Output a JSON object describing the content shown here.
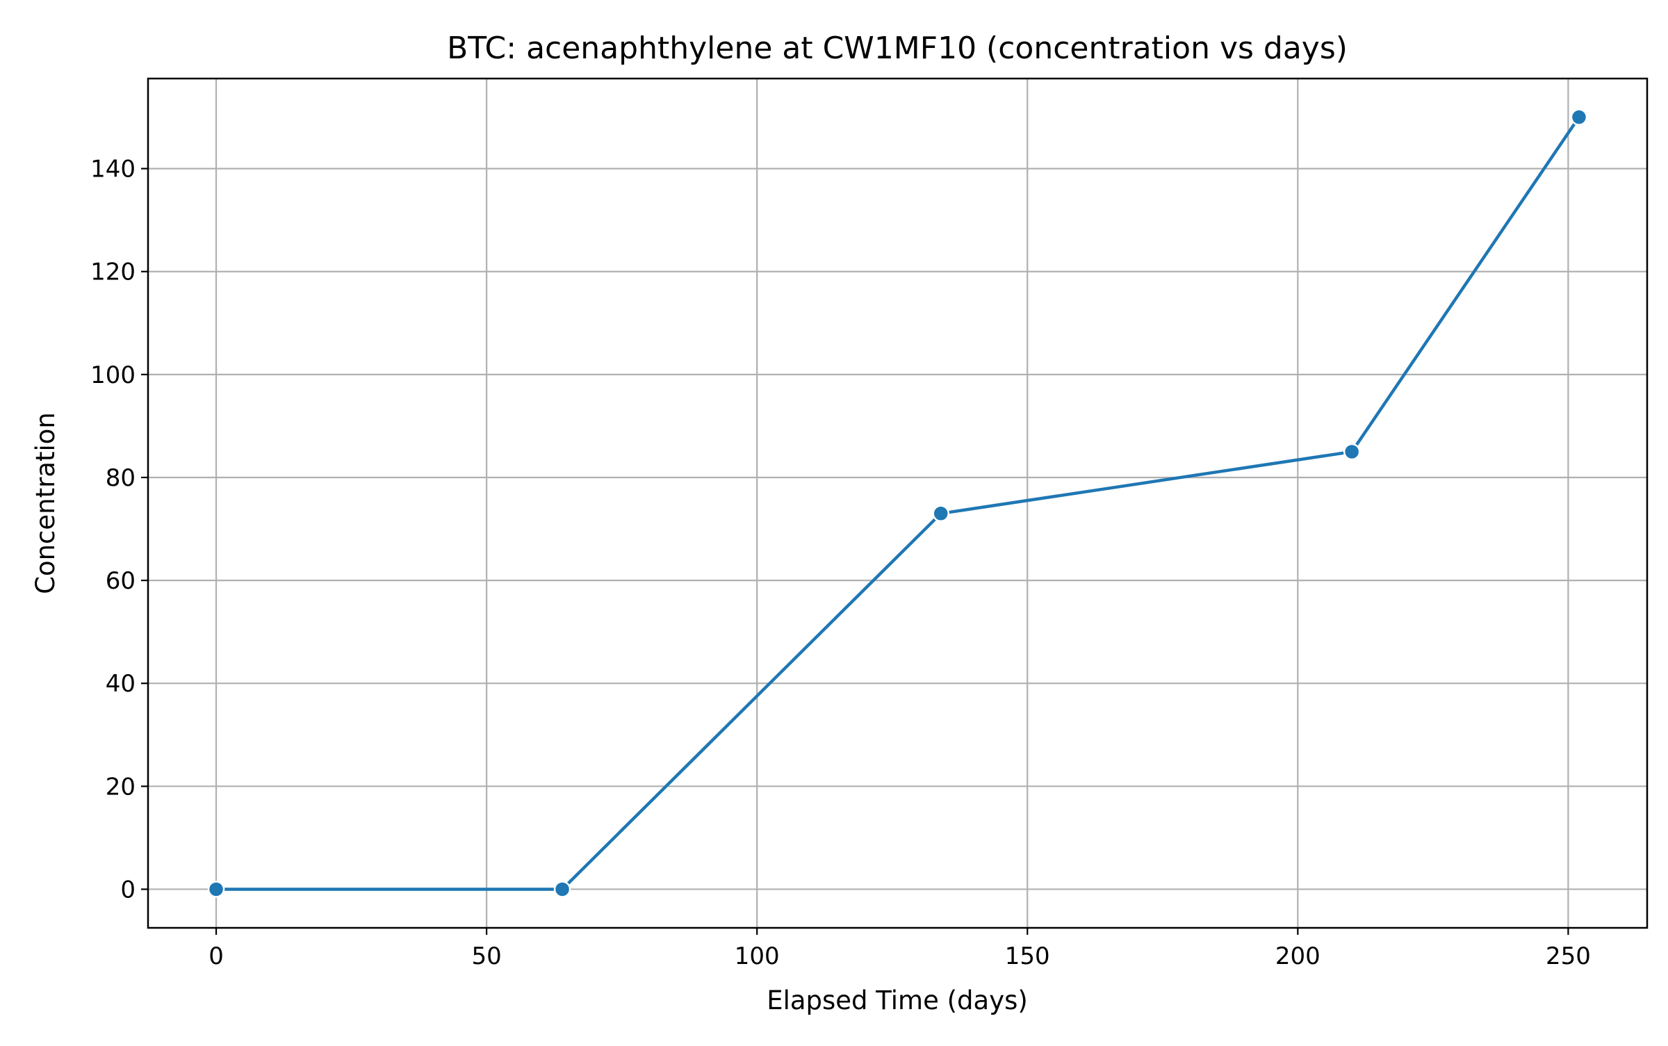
{
  "chart_data": {
    "type": "line",
    "title": "BTC: acenaphthylene at CW1MF10 (concentration vs days)",
    "xlabel": "Elapsed Time (days)",
    "ylabel": "Concentration",
    "xlim": [
      -12.6,
      264.6
    ],
    "ylim": [
      -7.5,
      157.5
    ],
    "xticks": [
      0,
      50,
      100,
      150,
      200,
      250
    ],
    "yticks": [
      0,
      20,
      40,
      60,
      80,
      100,
      120,
      140
    ],
    "grid": true,
    "line_color": "#1f77b4",
    "series": [
      {
        "x": [
          0,
          64,
          134,
          210,
          252
        ],
        "y": [
          0,
          0,
          73,
          85,
          150
        ]
      }
    ]
  }
}
